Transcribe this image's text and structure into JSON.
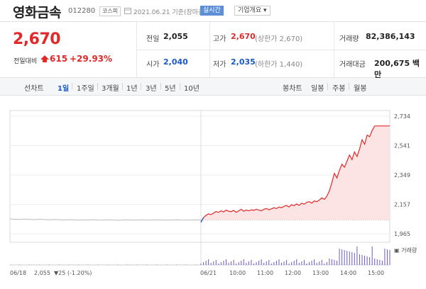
{
  "header": {
    "stock_name": "영화금속",
    "stock_code": "012280",
    "market_badge": "코스피",
    "date_text": "2021.06.21 기준(장마감)",
    "realtime_label": "실시간",
    "company_label": "기업개요"
  },
  "quote": {
    "price": "2,670",
    "change_label": "전일대비",
    "change_value": "615",
    "change_percent": "+29.93%",
    "prev_close_label": "전일",
    "prev_close": "2,055",
    "high_label": "고가",
    "high": "2,670",
    "upper_limit": "(상한가 2,670)",
    "volume_label": "거래량",
    "volume": "82,386,143",
    "open_label": "시가",
    "open": "2,040",
    "low_label": "저가",
    "low": "2,035",
    "lower_limit": "(하한가 1,440)",
    "amount_label": "거래대금",
    "amount": "200,675 백만"
  },
  "tabs": {
    "line_chart_label": "선차트",
    "line_periods": [
      "1일",
      "1주일",
      "3개월",
      "1년",
      "3년",
      "5년",
      "10년"
    ],
    "active_period": "1일",
    "candle_chart_label": "봉차트",
    "candle_periods": [
      "일봉",
      "주봉",
      "월봉"
    ]
  },
  "colors": {
    "up": "#e22828",
    "down": "#1a58c9",
    "fill": "#fde4e4"
  },
  "chart_data": {
    "type": "line",
    "y_ticks": [
      "2,734",
      "2,541",
      "2,349",
      "2,157",
      "1,965"
    ],
    "ylim": [
      1965,
      2734
    ],
    "prev_day_label": "06/18",
    "prev_day_close": "2,055",
    "prev_day_change": "▼25 (-1.20%)",
    "today_label": "06/21",
    "x_time_labels": [
      "10:00",
      "11:00",
      "12:00",
      "13:00",
      "14:00",
      "15:00"
    ],
    "volume_legend": "거래량",
    "baseline": 2055,
    "prev_day_series": [
      2062,
      2060,
      2058,
      2061,
      2059,
      2057,
      2060,
      2058,
      2056,
      2058,
      2057,
      2055,
      2057,
      2056,
      2054,
      2056,
      2055,
      2057,
      2055,
      2054,
      2056,
      2055,
      2053,
      2055,
      2056,
      2054,
      2055,
      2056,
      2054,
      2055,
      2056,
      2055,
      2054,
      2055,
      2056,
      2055,
      2054,
      2055,
      2056,
      2055
    ],
    "today_series": [
      2040,
      2070,
      2085,
      2095,
      2090,
      2100,
      2110,
      2105,
      2115,
      2108,
      2120,
      2112,
      2110,
      2118,
      2105,
      2115,
      2125,
      2112,
      2120,
      2115,
      2122,
      2118,
      2125,
      2120,
      2115,
      2125,
      2130,
      2122,
      2128,
      2135,
      2130,
      2140,
      2135,
      2145,
      2150,
      2140,
      2155,
      2148,
      2160,
      2150,
      2165,
      2158,
      2170,
      2175,
      2165,
      2180,
      2175,
      2185,
      2200,
      2190,
      2210,
      2245,
      2300,
      2360,
      2330,
      2380,
      2420,
      2400,
      2440,
      2480,
      2450,
      2500,
      2470,
      2520,
      2580,
      2550,
      2610,
      2600,
      2640,
      2670,
      2670,
      2670,
      2670,
      2670,
      2670,
      2670
    ]
  }
}
